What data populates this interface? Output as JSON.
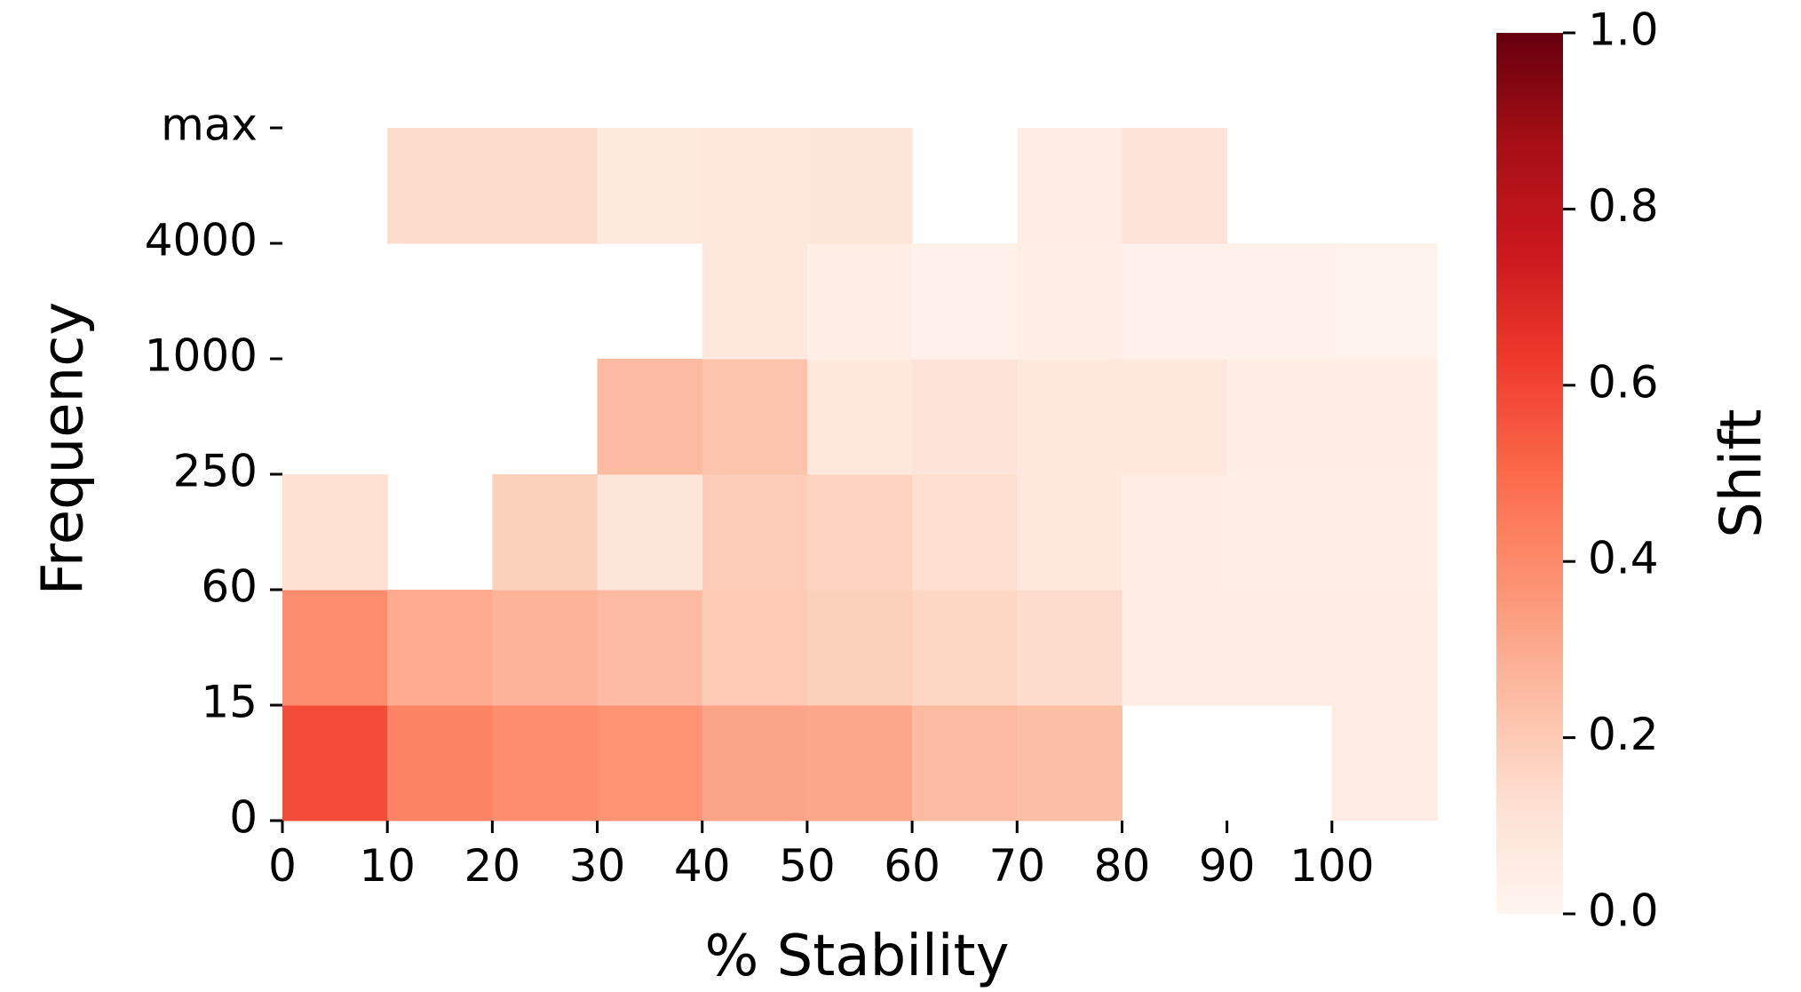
{
  "chart_data": {
    "type": "heatmap",
    "xlabel": "% Stability",
    "ylabel": "Frequency",
    "x_ticks": [
      "0",
      "10",
      "20",
      "30",
      "40",
      "50",
      "60",
      "70",
      "80",
      "90",
      "100"
    ],
    "y_ticks": [
      "0",
      "15",
      "60",
      "250",
      "1000",
      "4000",
      "max"
    ],
    "colorbar": {
      "label": "Shift",
      "range": [
        0.0,
        1.0
      ],
      "ticks": [
        "0.0",
        "0.2",
        "0.4",
        "0.6",
        "0.8",
        "1.0"
      ],
      "colormap": "Reds"
    },
    "grid": false,
    "values": [
      [
        0.58,
        0.42,
        0.39,
        0.37,
        0.32,
        0.31,
        0.25,
        0.24,
        null,
        null,
        0.06
      ],
      [
        0.39,
        0.3,
        0.27,
        0.25,
        0.2,
        0.18,
        0.16,
        0.14,
        0.06,
        0.06,
        0.06
      ],
      [
        0.12,
        null,
        0.18,
        0.09,
        0.19,
        0.17,
        0.13,
        0.08,
        0.05,
        0.04,
        0.04
      ],
      [
        null,
        null,
        null,
        0.25,
        0.22,
        0.08,
        0.1,
        0.08,
        0.08,
        0.05,
        0.05
      ],
      [
        null,
        null,
        null,
        null,
        0.08,
        0.04,
        0.03,
        0.04,
        0.03,
        0.03,
        0.02
      ],
      [
        null,
        0.14,
        0.14,
        0.07,
        0.08,
        0.09,
        null,
        0.05,
        0.1,
        null,
        null
      ]
    ]
  }
}
